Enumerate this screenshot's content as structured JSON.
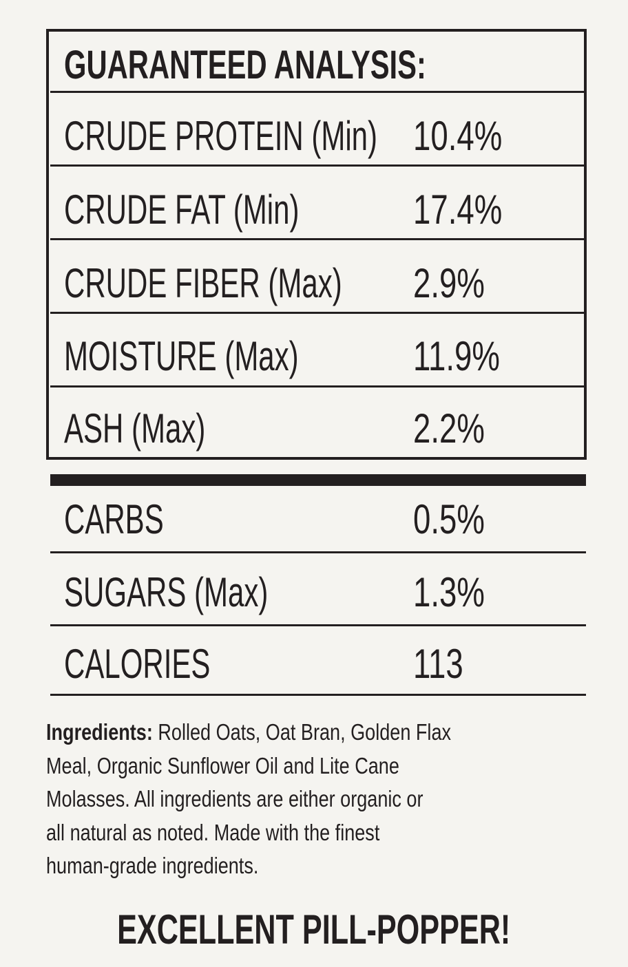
{
  "title": "GUARANTEED ANALYSIS:",
  "analysis": [
    {
      "label": "CRUDE PROTEIN (Min)",
      "value": "10.4%"
    },
    {
      "label": "CRUDE FAT (Min)",
      "value": "17.4%"
    },
    {
      "label": "CRUDE FIBER (Max)",
      "value": "2.9%"
    },
    {
      "label": "MOISTURE (Max)",
      "value": "11.9%"
    },
    {
      "label": "ASH (Max)",
      "value": "2.2%"
    }
  ],
  "extra": [
    {
      "label": "CARBS",
      "value": "0.5%"
    },
    {
      "label": "SUGARS (Max)",
      "value": "1.3%"
    },
    {
      "label": "CALORIES",
      "value": "113"
    }
  ],
  "ingredients": {
    "label": "Ingredients:",
    "lines": [
      " Rolled Oats, Oat Bran, Golden Flax",
      "Meal, Organic Sunflower Oil and Lite Cane",
      "Molasses. All ingredients are either organic or",
      "all natural as noted. Made with the finest",
      "human-grade ingredients."
    ]
  },
  "footer": "EXCELLENT PILL-POPPER!"
}
